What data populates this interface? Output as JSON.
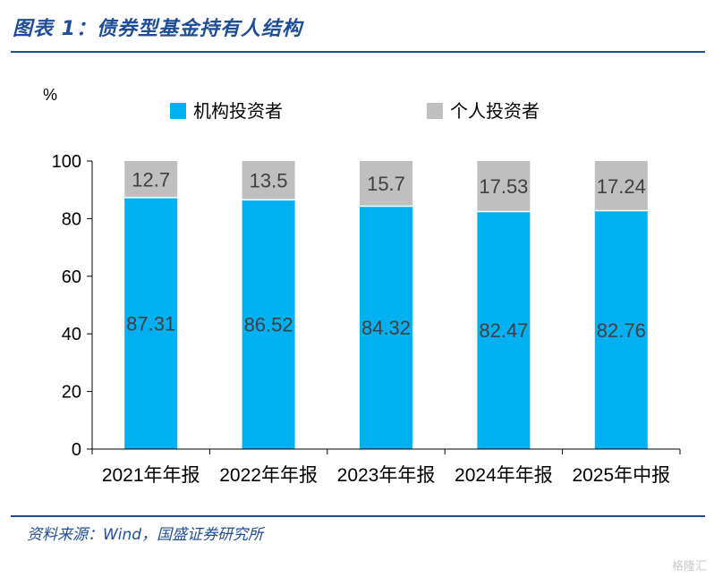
{
  "header": {
    "title": "图表 1：债券型基金持有人结构"
  },
  "footer": {
    "source": "资料来源：Wind，国盛证券研究所",
    "watermark": "格隆汇"
  },
  "colors": {
    "institutional": "#00b0f0",
    "individual": "#bfbfbf",
    "brand": "#1f4e96"
  },
  "chart_data": {
    "type": "bar",
    "stacked": true,
    "unit_label": "%",
    "categories": [
      "2021年年报",
      "2022年年报",
      "2023年年报",
      "2024年年报",
      "2025年中报"
    ],
    "series": [
      {
        "name": "机构投资者",
        "values": [
          87.31,
          86.52,
          84.32,
          82.47,
          82.76
        ]
      },
      {
        "name": "个人投资者",
        "values": [
          12.7,
          13.5,
          15.7,
          17.53,
          17.24
        ]
      }
    ],
    "ylim": [
      0,
      100
    ],
    "yticks": [
      0,
      20,
      40,
      60,
      80,
      100
    ],
    "legend_position": "top",
    "grid": false
  }
}
